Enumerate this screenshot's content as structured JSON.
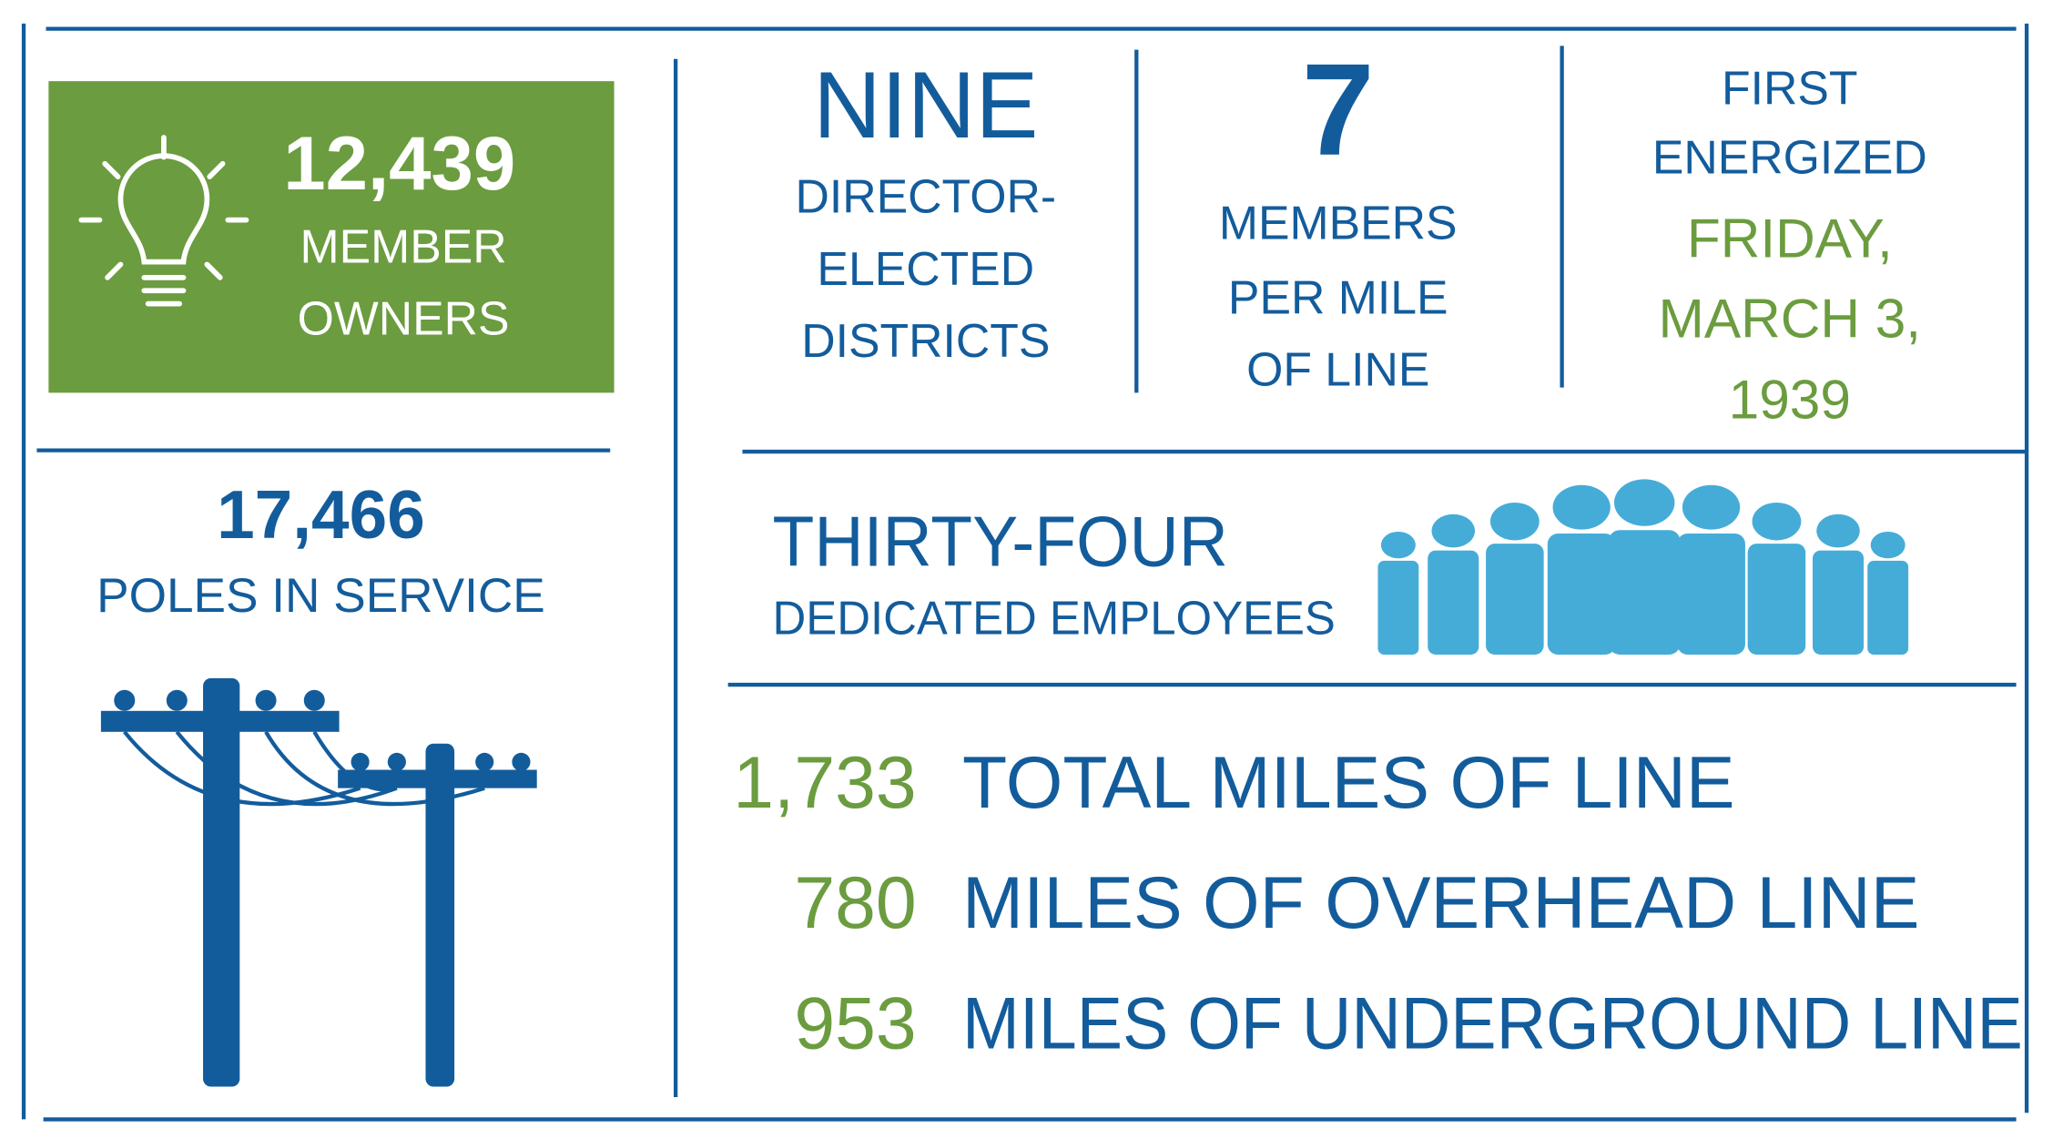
{
  "members": {
    "value": "12,439",
    "label_lines": [
      "MEMBER",
      "OWNERS"
    ]
  },
  "poles": {
    "value": "17,466",
    "label": "POLES IN SERVICE"
  },
  "districts": {
    "value": "NINE",
    "label_lines": [
      "DIRECTOR-",
      "ELECTED",
      "DISTRICTS"
    ]
  },
  "density": {
    "value": "7",
    "label_lines": [
      "MEMBERS",
      "PER MILE",
      "OF LINE"
    ]
  },
  "energized": {
    "label_lines": [
      "FIRST",
      "ENERGIZED"
    ],
    "date_lines": [
      "FRIDAY,",
      "MARCH 3,",
      "1939"
    ]
  },
  "employees": {
    "value": "THIRTY-FOUR",
    "label": "DEDICATED EMPLOYEES"
  },
  "miles": [
    {
      "value": "1,733",
      "label": "TOTAL MILES OF LINE"
    },
    {
      "value": "780",
      "label": "MILES OF OVERHEAD LINE"
    },
    {
      "value": "953",
      "label": "MILES OF UNDERGROUND LINE"
    }
  ]
}
